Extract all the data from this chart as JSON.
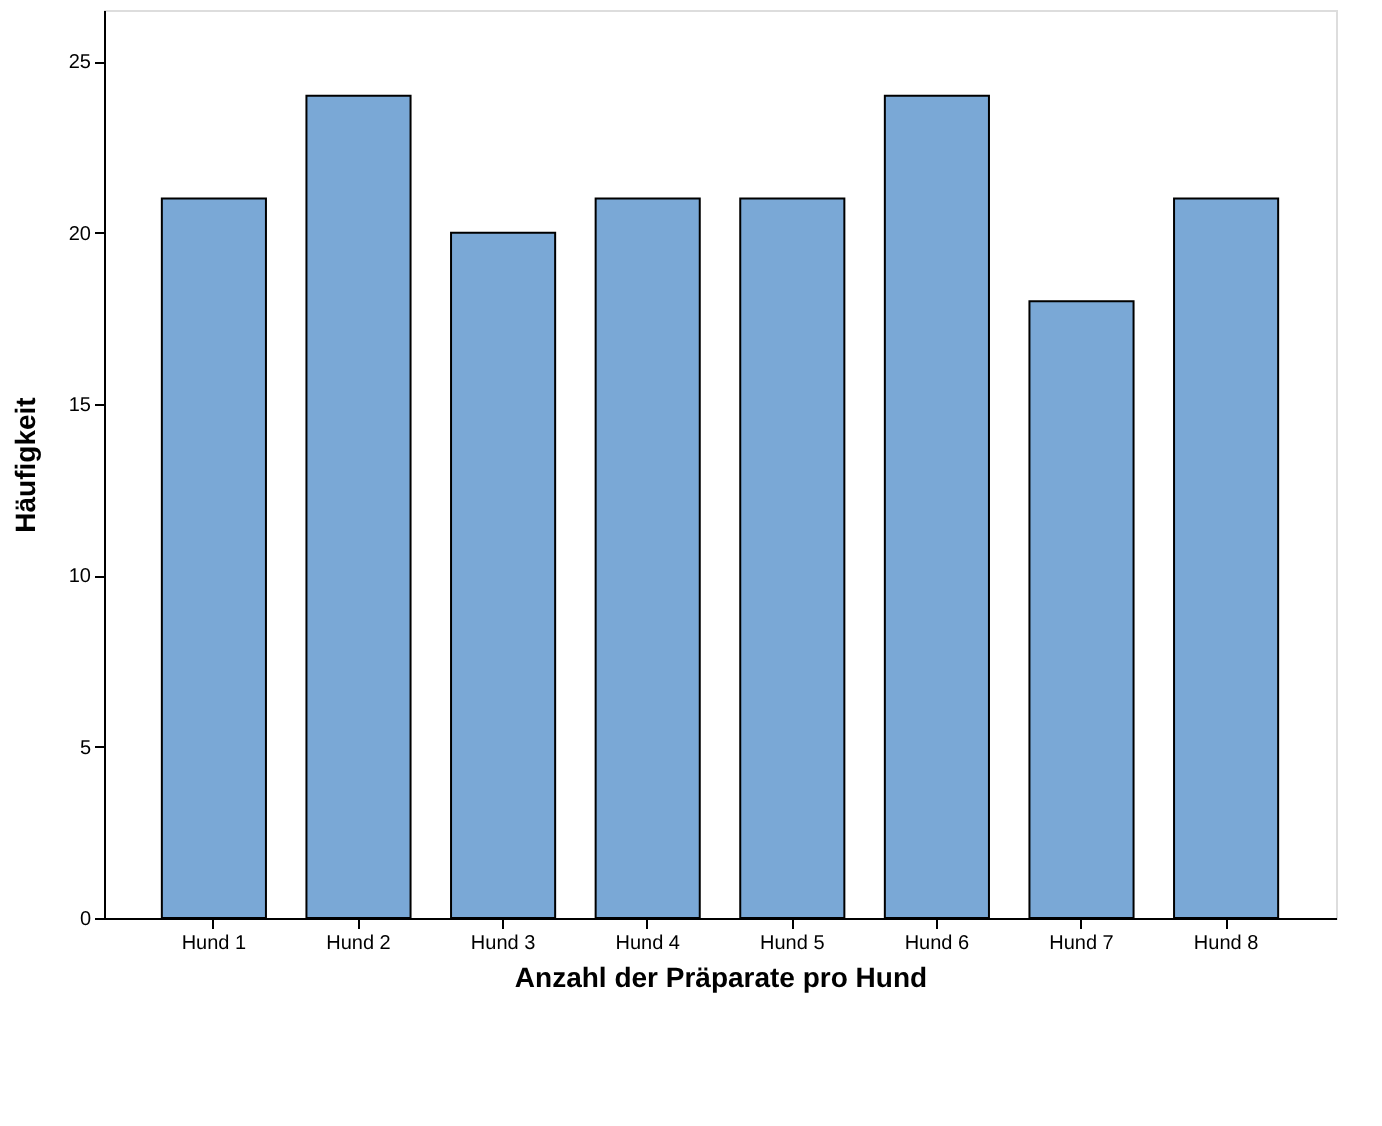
{
  "chart_data": {
    "type": "bar",
    "xlabel": "Anzahl der Präparate pro Hund",
    "ylabel": "Häufigkeit",
    "categories": [
      "Hund 1",
      "Hund 2",
      "Hund 3",
      "Hund 4",
      "Hund 5",
      "Hund 6",
      "Hund 7",
      "Hund 8"
    ],
    "values": [
      21,
      24,
      20,
      21,
      21,
      24,
      18,
      21
    ],
    "color": "#7aa8d6",
    "ylim": [
      0,
      26.5
    ],
    "yticks": [
      0,
      5,
      10,
      15,
      20,
      25
    ],
    "grid": false
  }
}
